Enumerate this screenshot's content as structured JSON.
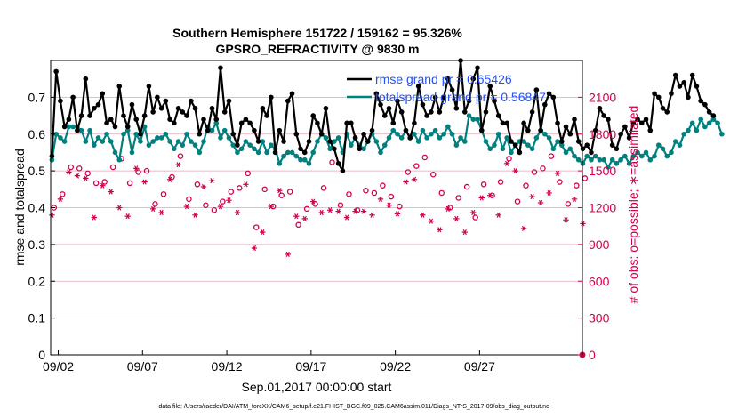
{
  "chart_data": {
    "type": "line",
    "title": "Southern Hemisphere 151722 / 159162 = 95.326%",
    "subtitle": "GPSRO_REFRACTIVITY @ 9830 m",
    "xlabel": "Sep.01,2017 00:00:00 start",
    "ylabel": "rmse and totalspread",
    "y2label": "# of obs: o=possible; ∗=assimilated",
    "footer": "data file: /Users/raeder/DAI/ATM_forcXX/CAM6_setup/f.e21.FHIST_BGC.f09_025.CAM6assim.011/Diags_NTrS_2017-09/obs_diag_output.nc",
    "xlim": [
      1.55,
      33.1
    ],
    "ylim": [
      0,
      0.8
    ],
    "y2lim": [
      0,
      2400
    ],
    "x_tick_values": [
      2,
      7,
      12,
      17,
      22,
      27
    ],
    "x_tick_labels": [
      "09/02",
      "09/07",
      "09/12",
      "09/17",
      "09/22",
      "09/27"
    ],
    "y_tick_labels": [
      "0",
      "0.1",
      "0.2",
      "0.3",
      "0.4",
      "0.5",
      "0.6",
      "0.7"
    ],
    "y2_tick_labels": [
      "0",
      "300",
      "600",
      "900",
      "1200",
      "1500",
      "1800",
      "2100"
    ],
    "legend": [
      {
        "name": "rmse grand pr = 0.65426",
        "color": "#000000"
      },
      {
        "name": "totalspread grand pr = 0.56847",
        "color": "#00807f"
      }
    ],
    "colors": {
      "rmse": "#000000",
      "spread": "#00807f",
      "obs": "#d1004f",
      "grid": "#e3a3b3"
    },
    "x_start": 1.625,
    "x_step": 0.25,
    "rmse": [
      0.54,
      0.77,
      0.69,
      0.62,
      0.64,
      0.7,
      0.61,
      0.65,
      0.75,
      0.65,
      0.67,
      0.68,
      0.71,
      0.63,
      0.64,
      0.62,
      0.73,
      0.65,
      0.62,
      0.68,
      0.64,
      0.6,
      0.65,
      0.73,
      0.66,
      0.7,
      0.67,
      0.69,
      0.64,
      0.63,
      0.67,
      0.66,
      0.65,
      0.69,
      0.67,
      0.6,
      0.64,
      0.61,
      0.67,
      0.64,
      0.78,
      0.66,
      0.69,
      0.6,
      0.57,
      0.63,
      0.64,
      0.63,
      0.61,
      0.58,
      0.67,
      0.65,
      0.7,
      0.55,
      0.61,
      0.58,
      0.69,
      0.71,
      0.6,
      0.56,
      0.55,
      0.58,
      0.65,
      0.63,
      0.6,
      0.67,
      0.58,
      0.56,
      0.52,
      0.5,
      0.63,
      0.63,
      0.59,
      0.56,
      0.6,
      0.58,
      0.61,
      0.71,
      0.68,
      0.65,
      0.67,
      0.63,
      0.69,
      0.66,
      0.61,
      0.59,
      0.63,
      0.73,
      0.68,
      0.65,
      0.66,
      0.7,
      0.66,
      0.7,
      0.75,
      0.72,
      0.67,
      0.8,
      0.66,
      0.69,
      0.75,
      0.78,
      0.61,
      0.66,
      0.73,
      0.69,
      0.65,
      0.63,
      0.63,
      0.58,
      0.57,
      0.55,
      0.63,
      0.61,
      0.66,
      0.72,
      0.61,
      0.68,
      0.71,
      0.7,
      0.63,
      0.58,
      0.62,
      0.6,
      0.64,
      0.58,
      0.56,
      0.57,
      0.55,
      0.61,
      0.67,
      0.65,
      0.64,
      0.57,
      0.56,
      0.6,
      0.62,
      0.59,
      0.63,
      0.64,
      0.63,
      0.64,
      0.61,
      0.71,
      0.7,
      0.67,
      0.66,
      0.71,
      0.76,
      0.73,
      0.74,
      0.7,
      0.76,
      0.73,
      0.69,
      0.68,
      0.66,
      0.65
    ],
    "spread": [
      0.53,
      0.6,
      0.59,
      0.58,
      0.62,
      0.62,
      0.62,
      0.61,
      0.58,
      0.61,
      0.57,
      0.59,
      0.58,
      0.6,
      0.58,
      0.55,
      0.53,
      0.6,
      0.61,
      0.55,
      0.6,
      0.58,
      0.62,
      0.57,
      0.58,
      0.59,
      0.59,
      0.6,
      0.58,
      0.56,
      0.58,
      0.57,
      0.6,
      0.58,
      0.57,
      0.55,
      0.58,
      0.62,
      0.61,
      0.63,
      0.59,
      0.61,
      0.59,
      0.57,
      0.55,
      0.56,
      0.58,
      0.57,
      0.56,
      0.55,
      0.58,
      0.55,
      0.57,
      0.56,
      0.52,
      0.54,
      0.55,
      0.55,
      0.54,
      0.53,
      0.53,
      0.52,
      0.55,
      0.58,
      0.6,
      0.59,
      0.56,
      0.58,
      0.59,
      0.55,
      0.6,
      0.57,
      0.59,
      0.57,
      0.56,
      0.58,
      0.6,
      0.58,
      0.55,
      0.57,
      0.59,
      0.61,
      0.6,
      0.59,
      0.61,
      0.59,
      0.6,
      0.58,
      0.61,
      0.59,
      0.6,
      0.61,
      0.59,
      0.6,
      0.62,
      0.6,
      0.57,
      0.59,
      0.58,
      0.65,
      0.64,
      0.64,
      0.61,
      0.58,
      0.56,
      0.57,
      0.6,
      0.56,
      0.59,
      0.55,
      0.57,
      0.58,
      0.58,
      0.57,
      0.56,
      0.59,
      0.61,
      0.6,
      0.59,
      0.56,
      0.58,
      0.57,
      0.55,
      0.56,
      0.54,
      0.53,
      0.52,
      0.54,
      0.53,
      0.54,
      0.53,
      0.53,
      0.51,
      0.53,
      0.52,
      0.53,
      0.54,
      0.52,
      0.54,
      0.55,
      0.54,
      0.55,
      0.53,
      0.54,
      0.57,
      0.56,
      0.54,
      0.55,
      0.58,
      0.57,
      0.6,
      0.61,
      0.63,
      0.61,
      0.64,
      0.62,
      0.63,
      0.64,
      0.63,
      0.6
    ],
    "obs_possible_start": 1.75,
    "obs_possible_step": 0.5,
    "obs_possible": [
      1200,
      1310,
      1530,
      1520,
      1480,
      1400,
      1410,
      1530,
      1600,
      1400,
      1490,
      1500,
      1230,
      1310,
      1450,
      1620,
      1270,
      1390,
      1220,
      1180,
      1250,
      1330,
      1360,
      1480,
      1040,
      1350,
      1210,
      1300,
      1330,
      1060,
      1190,
      1230,
      1360,
      1570,
      1220,
      1310,
      1180,
      1340,
      1320,
      1380,
      1290,
      1210,
      1490,
      1540,
      1610,
      1470,
      1320,
      1200,
      1280,
      1370,
      1120,
      1390,
      1300,
      1410,
      1600,
      1250,
      1380,
      1490,
      1520,
      1620,
      1410,
      1230,
      1380,
      1440
    ],
    "obs_assimilated_start": 1.625,
    "obs_assimilated_step": 0.5,
    "obs_assimilated": [
      1140,
      1270,
      1490,
      1460,
      1440,
      1120,
      1380,
      1330,
      1200,
      1130,
      1520,
      1410,
      1190,
      1160,
      1430,
      1550,
      1210,
      1140,
      1370,
      1420,
      1210,
      1260,
      1160,
      1390,
      870,
      1000,
      1210,
      1340,
      820,
      1130,
      1110,
      1250,
      1160,
      1180,
      1170,
      1120,
      1170,
      1170,
      1140,
      1270,
      1220,
      1150,
      1410,
      1430,
      1140,
      1090,
      1020,
      1190,
      1110,
      1000,
      1160,
      1280,
      1300,
      1140,
      1560,
      1500,
      1030,
      1290,
      1240,
      1320,
      1480,
      1100,
      1270,
      1070
    ]
  }
}
